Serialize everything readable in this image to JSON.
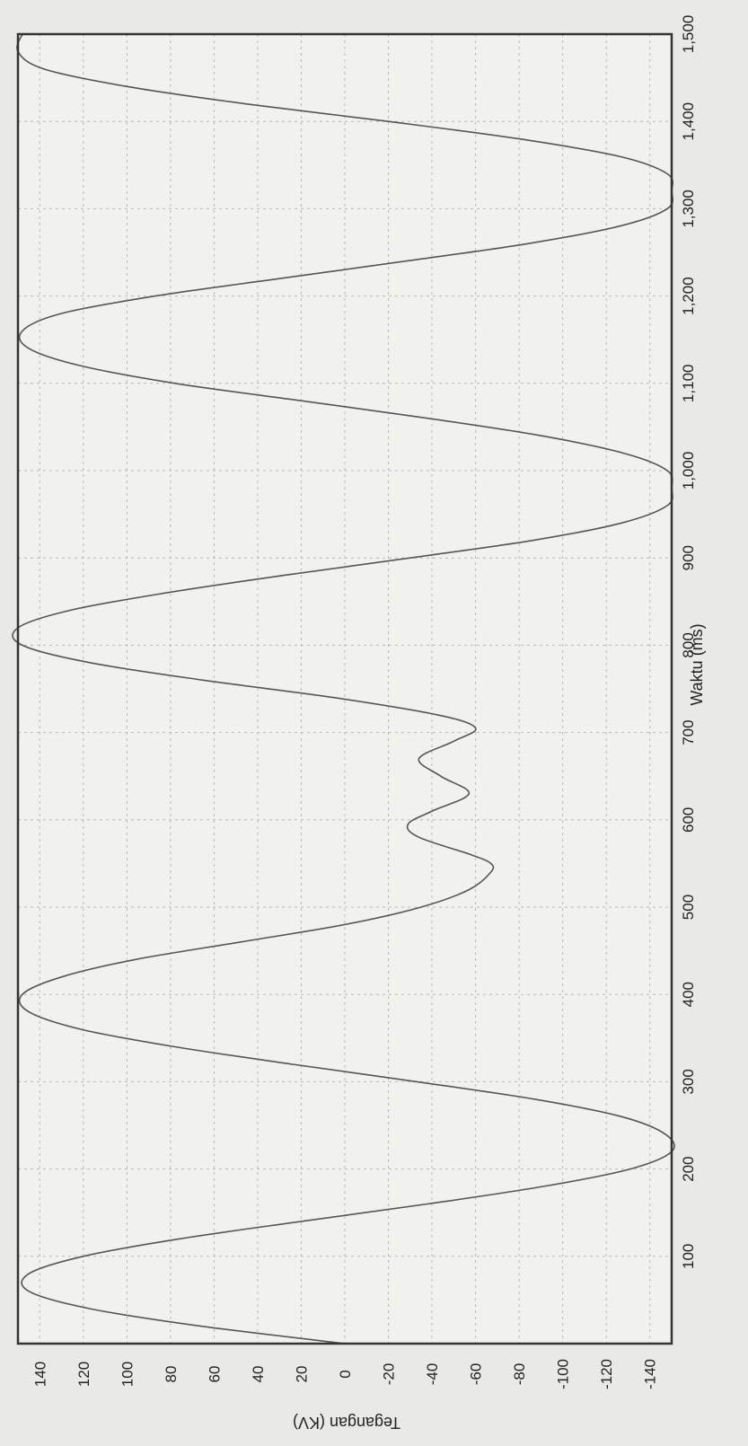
{
  "chart_data": {
    "type": "line",
    "title": "",
    "xlabel": "Waktu (ms)",
    "ylabel": "Tegangan (KV)",
    "xlim": [
      0,
      1500
    ],
    "ylim": [
      -150,
      150
    ],
    "x_ticks": [
      {
        "value": 100,
        "label": "100"
      },
      {
        "value": 200,
        "label": "200"
      },
      {
        "value": 300,
        "label": "300"
      },
      {
        "value": 400,
        "label": "400"
      },
      {
        "value": 500,
        "label": "500"
      },
      {
        "value": 600,
        "label": "600"
      },
      {
        "value": 700,
        "label": "700"
      },
      {
        "value": 800,
        "label": "800"
      },
      {
        "value": 900,
        "label": "900"
      },
      {
        "value": 1000,
        "label": "1,000"
      },
      {
        "value": 1100,
        "label": "1,100"
      },
      {
        "value": 1200,
        "label": "1,200"
      },
      {
        "value": 1300,
        "label": "1,300"
      },
      {
        "value": 1400,
        "label": "1,400"
      },
      {
        "value": 1500,
        "label": "1,500"
      }
    ],
    "y_ticks": [
      {
        "value": 140,
        "label": "140"
      },
      {
        "value": 120,
        "label": "120"
      },
      {
        "value": 100,
        "label": "100"
      },
      {
        "value": 80,
        "label": "80"
      },
      {
        "value": 60,
        "label": "60"
      },
      {
        "value": 40,
        "label": "40"
      },
      {
        "value": 20,
        "label": "20"
      },
      {
        "value": 0,
        "label": "0"
      },
      {
        "value": -20,
        "label": "-20"
      },
      {
        "value": -40,
        "label": "-40"
      },
      {
        "value": -60,
        "label": "-60"
      },
      {
        "value": -80,
        "label": "-80"
      },
      {
        "value": -100,
        "label": "-100"
      },
      {
        "value": -120,
        "label": "-120"
      },
      {
        "value": -140,
        "label": "-140"
      }
    ],
    "grid": true,
    "orientation": "rotated 90° clockwise",
    "series": [
      {
        "color": "#555555",
        "x": [
          0,
          20,
          40,
          60,
          80,
          100,
          120,
          140,
          160,
          180,
          200,
          220,
          240,
          260,
          280,
          300,
          320,
          340,
          360,
          380,
          400,
          420,
          440,
          460,
          480,
          500,
          520,
          540,
          550,
          560,
          580,
          595,
          610,
          630,
          650,
          670,
          690,
          705,
          720,
          740,
          760,
          780,
          800,
          820,
          840,
          860,
          880,
          900,
          920,
          940,
          960,
          980,
          1000,
          1020,
          1040,
          1060,
          1080,
          1100,
          1120,
          1140,
          1160,
          1180,
          1200,
          1220,
          1240,
          1260,
          1280,
          1300,
          1320,
          1340,
          1360,
          1380,
          1400,
          1420,
          1440,
          1460,
          1480,
          1500
        ],
        "y": [
          0,
          66,
          117,
          145,
          145,
          120,
          76,
          20,
          -38,
          -91,
          -131,
          -150,
          -147,
          -127,
          -87,
          -33,
          24,
          78,
          121,
          145,
          148,
          130,
          96,
          48,
          0,
          -35,
          -57,
          -67,
          -67,
          -58,
          -34,
          -29,
          -40,
          -57,
          -44,
          -34,
          -50,
          -60,
          -43,
          5,
          65,
          117,
          148,
          150,
          126,
          82,
          28,
          -30,
          -86,
          -127,
          -148,
          -150,
          -148,
          -128,
          -90,
          -38,
          20,
          78,
          121,
          145,
          148,
          130,
          87,
          30,
          -28,
          -84,
          -126,
          -148,
          -150,
          -148,
          -126,
          -80,
          -20,
          45,
          100,
          138,
          150,
          148
        ]
      }
    ]
  }
}
